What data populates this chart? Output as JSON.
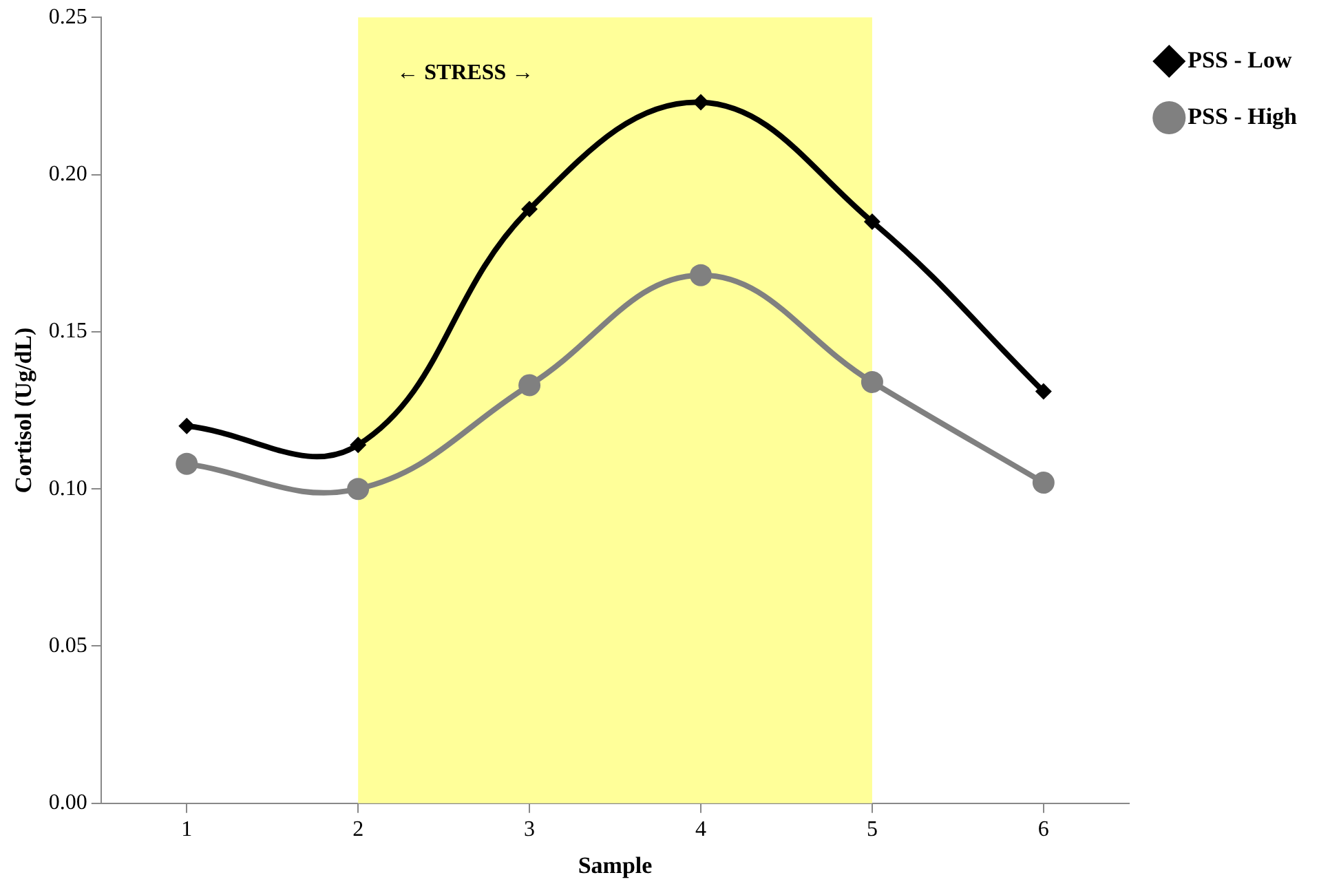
{
  "chart_data": {
    "type": "line",
    "xlabel": "Sample",
    "ylabel": "Cortisol (Ug/dL)",
    "x": [
      1,
      2,
      3,
      4,
      5,
      6
    ],
    "xlim": [
      0.5,
      6.5
    ],
    "xticks": [
      1,
      2,
      3,
      4,
      5,
      6
    ],
    "ylim": [
      0,
      0.25
    ],
    "yticks": [
      {
        "value": 0,
        "label": "0.00"
      },
      {
        "value": 0.05,
        "label": "0.05"
      },
      {
        "value": 0.1,
        "label": "0.10"
      },
      {
        "value": 0.15,
        "label": "0.15"
      },
      {
        "value": 0.2,
        "label": "0.20"
      },
      {
        "value": 0.25,
        "label": "0.25"
      }
    ],
    "series": [
      {
        "name": "PSS - Low",
        "color": "#000000",
        "marker": "diamond",
        "values": [
          0.12,
          0.114,
          0.189,
          0.223,
          0.185,
          0.131
        ]
      },
      {
        "name": "PSS - High",
        "color": "#808080",
        "marker": "circle",
        "values": [
          0.108,
          0.1,
          0.133,
          0.168,
          0.134,
          0.102
        ]
      }
    ],
    "bands": [
      {
        "axis": "x",
        "from": 2,
        "to": 5,
        "label": "← STRESS →",
        "color": "#ffff99"
      }
    ],
    "grid": false,
    "legend": "top right"
  }
}
